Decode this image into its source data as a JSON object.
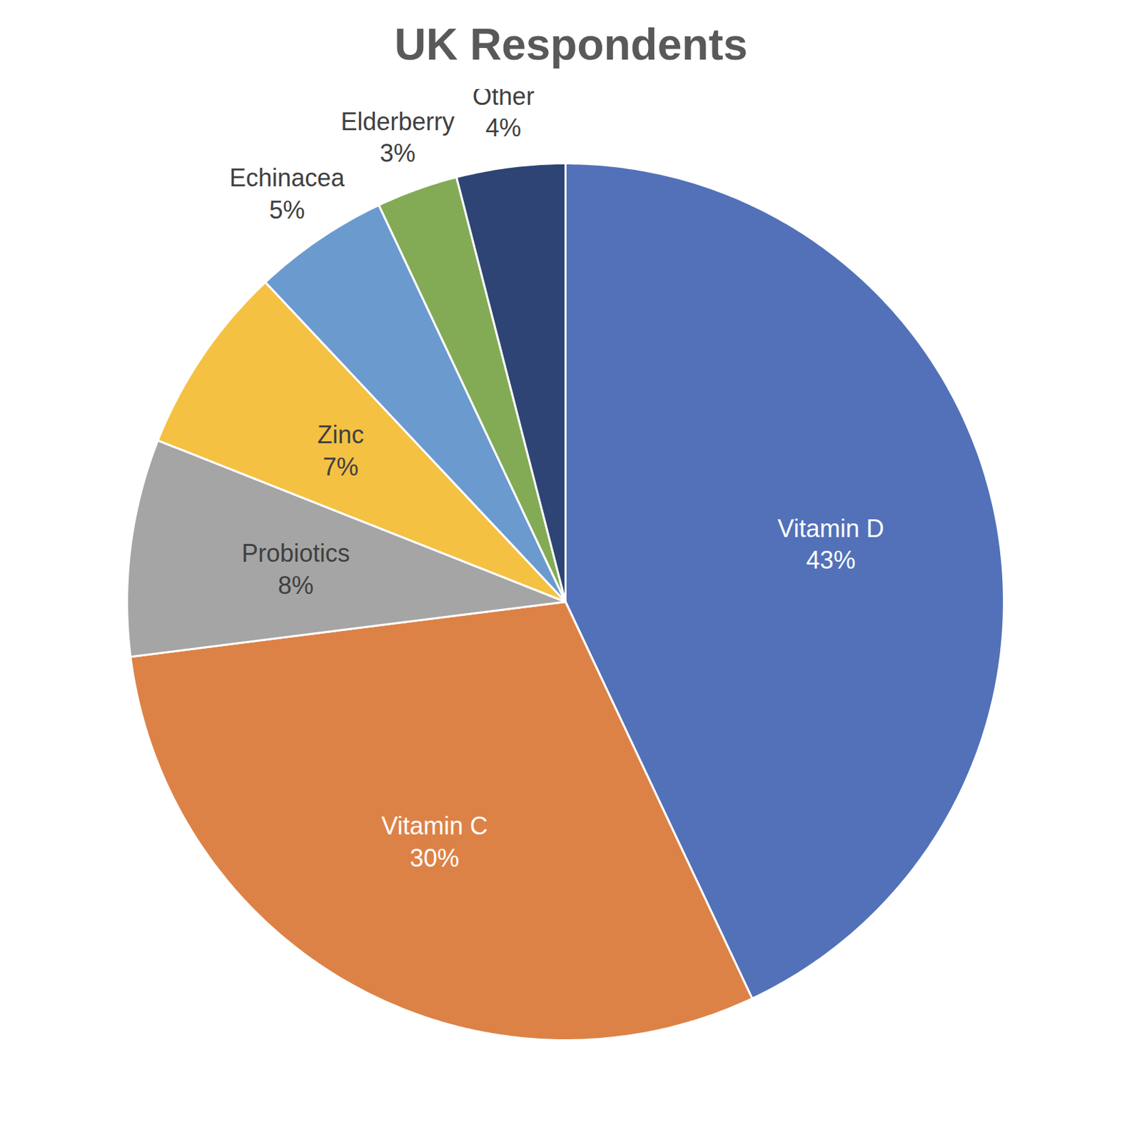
{
  "chart_data": {
    "type": "pie",
    "title": "UK Respondents",
    "categories": [
      "Vitamin D",
      "Vitamin C",
      "Probiotics",
      "Zinc",
      "Echinacea",
      "Elderberry",
      "Other"
    ],
    "values": [
      43,
      30,
      8,
      7,
      5,
      3,
      4
    ],
    "value_labels": [
      "43%",
      "30%",
      "8%",
      "7%",
      "5%",
      "3%",
      "4%"
    ],
    "colors": [
      "#5271b8",
      "#dd8246",
      "#a5a5a5",
      "#f4c143",
      "#6b9acf",
      "#83ab55",
      "#2d4474"
    ],
    "data_labels": true
  }
}
